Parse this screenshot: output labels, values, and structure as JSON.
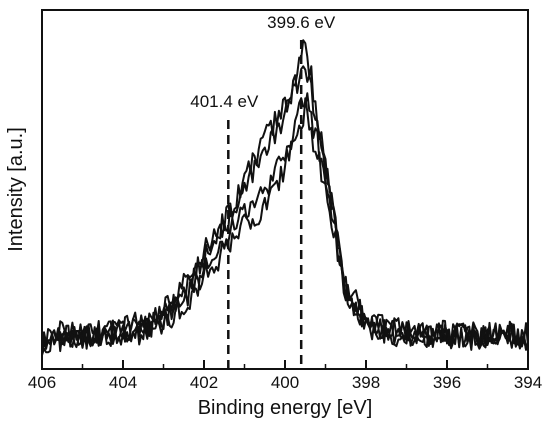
{
  "chart_data": {
    "type": "line",
    "title": "",
    "xlabel": "Binding energy [eV]",
    "ylabel": "Intensity [a.u.]",
    "xlim": [
      406,
      394
    ],
    "x_reversed": true,
    "ylim": [
      0,
      1
    ],
    "y_ticks_shown": false,
    "x_ticks": [
      406,
      404,
      402,
      400,
      398,
      396,
      394
    ],
    "x_tick_labels": [
      "406",
      "404",
      "402",
      "400",
      "398",
      "396",
      "394"
    ],
    "grid": false,
    "legend": "none",
    "line_color": "#111111",
    "annotations": [
      {
        "text": "401.4 eV",
        "x": 401.4,
        "style": "dashed-vertical-line"
      },
      {
        "text": "399.6 eV",
        "x": 399.6,
        "style": "dashed-vertical-line"
      }
    ],
    "x": [
      406.0,
      405.5,
      405.0,
      404.5,
      404.0,
      403.5,
      403.0,
      402.5,
      402.0,
      401.5,
      401.0,
      400.5,
      400.0,
      399.5,
      399.0,
      398.5,
      398.0,
      397.5,
      397.0,
      396.5,
      396.0,
      395.5,
      395.0,
      394.5,
      394.0
    ],
    "series": [
      {
        "values": [
          0.07,
          0.08,
          0.07,
          0.08,
          0.09,
          0.11,
          0.14,
          0.22,
          0.32,
          0.42,
          0.52,
          0.64,
          0.74,
          0.97,
          0.58,
          0.2,
          0.12,
          0.09,
          0.08,
          0.07,
          0.08,
          0.07,
          0.08,
          0.08,
          0.07
        ]
      },
      {
        "values": [
          0.06,
          0.07,
          0.07,
          0.07,
          0.08,
          0.1,
          0.13,
          0.2,
          0.3,
          0.4,
          0.54,
          0.68,
          0.76,
          0.9,
          0.6,
          0.22,
          0.12,
          0.09,
          0.08,
          0.07,
          0.07,
          0.07,
          0.07,
          0.08,
          0.06
        ]
      },
      {
        "values": [
          0.05,
          0.07,
          0.06,
          0.08,
          0.08,
          0.09,
          0.12,
          0.18,
          0.26,
          0.36,
          0.44,
          0.5,
          0.62,
          0.8,
          0.56,
          0.2,
          0.11,
          0.08,
          0.07,
          0.07,
          0.07,
          0.06,
          0.07,
          0.07,
          0.06
        ]
      },
      {
        "values": [
          0.04,
          0.06,
          0.06,
          0.07,
          0.07,
          0.08,
          0.11,
          0.16,
          0.24,
          0.33,
          0.4,
          0.46,
          0.58,
          0.76,
          0.52,
          0.18,
          0.1,
          0.07,
          0.06,
          0.06,
          0.06,
          0.06,
          0.06,
          0.06,
          0.05
        ]
      }
    ]
  }
}
